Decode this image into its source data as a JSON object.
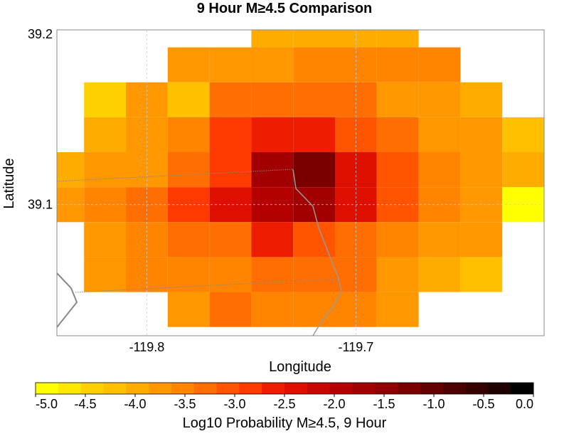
{
  "chart_data": {
    "type": "heatmap",
    "title": "9 Hour M≥4.5 Comparison",
    "xlabel": "Longitude",
    "ylabel": "Latitude",
    "x_ticks": [
      {
        "value": -119.8,
        "label": "-119.8"
      },
      {
        "value": -119.7,
        "label": "-119.7"
      }
    ],
    "y_ticks": [
      {
        "value": 39.1,
        "label": "39.1"
      },
      {
        "value": 39.2,
        "label": "39.2"
      }
    ],
    "xlim": [
      -119.843,
      -119.61
    ],
    "ylim": [
      39.025,
      39.2
    ],
    "grid": true,
    "cell_size_deg": 0.02,
    "colorbar": {
      "label": "Log10 Probability M≥4.5, 9 Hour",
      "min": -5.0,
      "max": 0.0,
      "ticks": [
        "-5.0",
        "-4.5",
        "-4.0",
        "-3.5",
        "-3.0",
        "-2.5",
        "-2.0",
        "-1.5",
        "-1.0",
        "-0.5",
        "0.0"
      ],
      "colors": [
        "#FFFF00",
        "#FFE800",
        "#FFD000",
        "#FFC000",
        "#FFAC00",
        "#FF9800",
        "#FF8400",
        "#FF6E00",
        "#FF5400",
        "#FF3A00",
        "#EE1D00",
        "#DD0F00",
        "#C80800",
        "#B50000",
        "#A20000",
        "#900000",
        "#7A0000",
        "#640000",
        "#4C0000",
        "#360000",
        "#1E0000",
        "#000000"
      ]
    },
    "rows": [
      {
        "lat": 39.2,
        "cells": [
          [
            -119.74,
            -4.0
          ],
          [
            -119.72,
            -4.0
          ],
          [
            -119.7,
            -4.0
          ],
          [
            -119.68,
            -4.0
          ]
        ]
      },
      {
        "lat": 39.18,
        "cells": [
          [
            -119.78,
            -3.75
          ],
          [
            -119.76,
            -3.75
          ],
          [
            -119.74,
            -3.75
          ],
          [
            -119.72,
            -3.5
          ],
          [
            -119.7,
            -3.5
          ],
          [
            -119.68,
            -3.5
          ],
          [
            -119.66,
            -3.5
          ]
        ]
      },
      {
        "lat": 39.16,
        "cells": [
          [
            -119.82,
            -4.35
          ],
          [
            -119.8,
            -3.8
          ],
          [
            -119.78,
            -4.2
          ],
          [
            -119.76,
            -3.35
          ],
          [
            -119.74,
            -3.35
          ],
          [
            -119.72,
            -3.35
          ],
          [
            -119.7,
            -3.35
          ],
          [
            -119.68,
            -3.65
          ],
          [
            -119.66,
            -3.65
          ],
          [
            -119.64,
            -3.9
          ]
        ]
      },
      {
        "lat": 39.14,
        "cells": [
          [
            -119.82,
            -3.9
          ],
          [
            -119.8,
            -3.75
          ],
          [
            -119.78,
            -3.5
          ],
          [
            -119.76,
            -2.9
          ],
          [
            -119.74,
            -2.65
          ],
          [
            -119.72,
            -2.65
          ],
          [
            -119.7,
            -3.0
          ],
          [
            -119.68,
            -3.4
          ],
          [
            -119.66,
            -3.7
          ],
          [
            -119.64,
            -3.8
          ],
          [
            -119.62,
            -4.2
          ]
        ]
      },
      {
        "lat": 39.12,
        "cells": [
          [
            -119.84,
            -3.9
          ],
          [
            -119.82,
            -3.75
          ],
          [
            -119.8,
            -3.75
          ],
          [
            -119.78,
            -3.3
          ],
          [
            -119.76,
            -2.75
          ],
          [
            -119.74,
            -1.6
          ],
          [
            -119.72,
            -1.35
          ],
          [
            -119.7,
            -2.3
          ],
          [
            -119.68,
            -3.1
          ],
          [
            -119.66,
            -3.6
          ],
          [
            -119.64,
            -3.65
          ],
          [
            -119.62,
            -3.9
          ]
        ]
      },
      {
        "lat": 39.1,
        "cells": [
          [
            -119.84,
            -3.75
          ],
          [
            -119.82,
            -3.5
          ],
          [
            -119.8,
            -3.25
          ],
          [
            -119.78,
            -2.95
          ],
          [
            -119.76,
            -2.4
          ],
          [
            -119.74,
            -1.9
          ],
          [
            -119.72,
            -1.6
          ],
          [
            -119.7,
            -2.35
          ],
          [
            -119.68,
            -3.15
          ],
          [
            -119.66,
            -3.45
          ],
          [
            -119.64,
            -3.75
          ],
          [
            -119.62,
            -4.85
          ]
        ]
      },
      {
        "lat": 39.08,
        "cells": [
          [
            -119.82,
            -3.8
          ],
          [
            -119.8,
            -3.6
          ],
          [
            -119.78,
            -3.35
          ],
          [
            -119.76,
            -3.3
          ],
          [
            -119.74,
            -2.65
          ],
          [
            -119.72,
            -3.0
          ],
          [
            -119.7,
            -3.3
          ],
          [
            -119.68,
            -3.5
          ],
          [
            -119.66,
            -3.7
          ],
          [
            -119.64,
            -3.8
          ]
        ]
      },
      {
        "lat": 39.06,
        "cells": [
          [
            -119.82,
            -3.7
          ],
          [
            -119.8,
            -3.55
          ],
          [
            -119.78,
            -3.55
          ],
          [
            -119.76,
            -3.5
          ],
          [
            -119.74,
            -3.35
          ],
          [
            -119.72,
            -3.35
          ],
          [
            -119.7,
            -3.4
          ],
          [
            -119.68,
            -3.85
          ],
          [
            -119.66,
            -4.0
          ],
          [
            -119.64,
            -4.2
          ]
        ]
      },
      {
        "lat": 39.04,
        "cells": [
          [
            -119.78,
            -3.7
          ],
          [
            -119.76,
            -3.2
          ],
          [
            -119.74,
            -3.45
          ],
          [
            -119.72,
            -3.45
          ],
          [
            -119.7,
            -3.55
          ],
          [
            -119.68,
            -3.75
          ]
        ]
      }
    ]
  }
}
